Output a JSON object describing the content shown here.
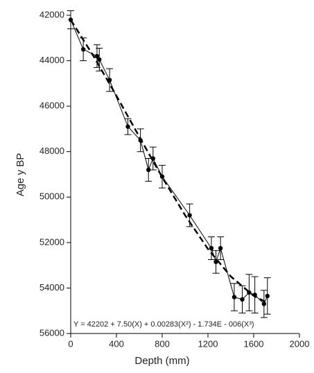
{
  "chart_data": {
    "type": "scatter",
    "xlabel": "Depth (mm)",
    "ylabel": "Age y BP",
    "annotation": "Y = 42202 + 7.50(X) + 0.00283(X²) - 1.734E - 006(X³)",
    "x": [
      0,
      110,
      230,
      250,
      340,
      500,
      610,
      680,
      720,
      800,
      1040,
      1230,
      1270,
      1310,
      1430,
      1500,
      1560,
      1610,
      1690,
      1720
    ],
    "values": [
      42200,
      43500,
      43800,
      43950,
      44850,
      46900,
      47500,
      48800,
      48300,
      49100,
      50800,
      52250,
      52850,
      52250,
      54400,
      54500,
      54200,
      54300,
      54700,
      54350
    ],
    "errors": [
      400,
      500,
      500,
      500,
      500,
      350,
      500,
      500,
      500,
      500,
      500,
      500,
      500,
      500,
      600,
      600,
      800,
      800,
      600,
      800
    ],
    "color": "#000000",
    "fit": {
      "x": [
        0,
        200,
        400,
        600,
        800,
        1000,
        1200,
        1400,
        1600,
        1720
      ],
      "values": [
        42202,
        43801,
        45544,
        47346,
        49125,
        50798,
        52281,
        53491,
        54345,
        54650
      ]
    },
    "xlim": [
      0,
      2000
    ],
    "xticks": [
      0,
      400,
      800,
      1200,
      1600,
      2000
    ],
    "ylim": [
      42000,
      56000
    ],
    "yticks": [
      42000,
      44000,
      46000,
      48000,
      50000,
      52000,
      54000,
      56000
    ],
    "y_inverted": true
  }
}
